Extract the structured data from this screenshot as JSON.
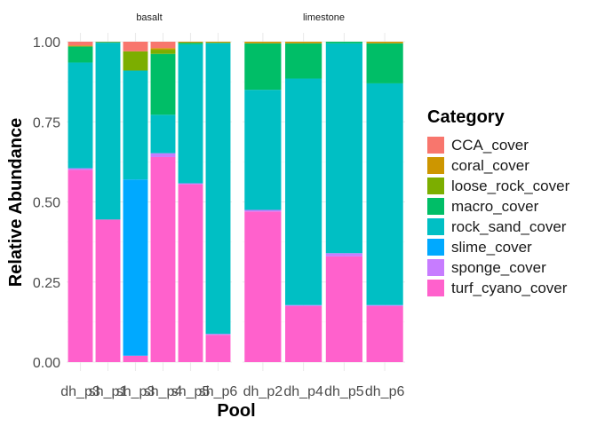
{
  "chart_data": {
    "type": "bar",
    "stacked": true,
    "xlabel": "Pool",
    "ylabel": "Relative Abundance",
    "ylim": [
      0,
      1
    ],
    "yticks": [
      "0.00",
      "0.25",
      "0.50",
      "0.75",
      "1.00"
    ],
    "legend": {
      "title": "Category",
      "position": "right"
    },
    "grid": true,
    "categories_order": [
      "CCA_cover",
      "coral_cover",
      "loose_rock_cover",
      "macro_cover",
      "rock_sand_cover",
      "slime_cover",
      "sponge_cover",
      "turf_cyano_cover"
    ],
    "colors": {
      "CCA_cover": "#F8766D",
      "coral_cover": "#CD9600",
      "loose_rock_cover": "#7CAE00",
      "macro_cover": "#00BE67",
      "rock_sand_cover": "#00BFC4",
      "slime_cover": "#00A9FF",
      "sponge_cover": "#C77CFF",
      "turf_cyano_cover": "#FF61CC"
    },
    "facets": [
      {
        "name": "basalt",
        "bars": [
          {
            "pool": "dh_p3",
            "values": {
              "turf_cyano_cover": 0.6,
              "sponge_cover": 0.005,
              "slime_cover": 0.0,
              "rock_sand_cover": 0.33,
              "macro_cover": 0.05,
              "loose_rock_cover": 0.0,
              "coral_cover": 0.003,
              "CCA_cover": 0.012
            }
          },
          {
            "pool": "sh_p1",
            "values": {
              "turf_cyano_cover": 0.445,
              "sponge_cover": 0.0,
              "slime_cover": 0.0,
              "rock_sand_cover": 0.552,
              "macro_cover": 0.002,
              "loose_rock_cover": 0.0,
              "coral_cover": 0.001,
              "CCA_cover": 0.0
            }
          },
          {
            "pool": "sh_p3",
            "values": {
              "turf_cyano_cover": 0.02,
              "sponge_cover": 0.0,
              "slime_cover": 0.55,
              "rock_sand_cover": 0.34,
              "macro_cover": 0.0,
              "loose_rock_cover": 0.06,
              "coral_cover": 0.0,
              "CCA_cover": 0.03
            }
          },
          {
            "pool": "sh_p4",
            "values": {
              "turf_cyano_cover": 0.64,
              "sponge_cover": 0.012,
              "slime_cover": 0.0,
              "rock_sand_cover": 0.12,
              "macro_cover": 0.19,
              "loose_rock_cover": 0.013,
              "coral_cover": 0.005,
              "CCA_cover": 0.02
            }
          },
          {
            "pool": "sh_p5",
            "values": {
              "turf_cyano_cover": 0.555,
              "sponge_cover": 0.003,
              "slime_cover": 0.0,
              "rock_sand_cover": 0.434,
              "macro_cover": 0.005,
              "loose_rock_cover": 0.0,
              "coral_cover": 0.003,
              "CCA_cover": 0.0
            }
          },
          {
            "pool": "sh_p6",
            "values": {
              "turf_cyano_cover": 0.085,
              "sponge_cover": 0.003,
              "slime_cover": 0.0,
              "rock_sand_cover": 0.907,
              "macro_cover": 0.002,
              "loose_rock_cover": 0.0,
              "coral_cover": 0.003,
              "CCA_cover": 0.0
            }
          }
        ]
      },
      {
        "name": "limestone",
        "bars": [
          {
            "pool": "dh_p2",
            "values": {
              "turf_cyano_cover": 0.47,
              "sponge_cover": 0.005,
              "slime_cover": 0.0,
              "rock_sand_cover": 0.375,
              "macro_cover": 0.145,
              "loose_rock_cover": 0.0,
              "coral_cover": 0.005,
              "CCA_cover": 0.0
            }
          },
          {
            "pool": "dh_p4",
            "values": {
              "turf_cyano_cover": 0.175,
              "sponge_cover": 0.003,
              "slime_cover": 0.0,
              "rock_sand_cover": 0.707,
              "macro_cover": 0.11,
              "loose_rock_cover": 0.0,
              "coral_cover": 0.005,
              "CCA_cover": 0.0
            }
          },
          {
            "pool": "dh_p5",
            "values": {
              "turf_cyano_cover": 0.33,
              "sponge_cover": 0.01,
              "slime_cover": 0.0,
              "rock_sand_cover": 0.655,
              "macro_cover": 0.005,
              "loose_rock_cover": 0.0,
              "coral_cover": 0.0,
              "CCA_cover": 0.0
            }
          },
          {
            "pool": "dh_p6",
            "values": {
              "turf_cyano_cover": 0.175,
              "sponge_cover": 0.003,
              "slime_cover": 0.0,
              "rock_sand_cover": 0.692,
              "macro_cover": 0.125,
              "loose_rock_cover": 0.0,
              "coral_cover": 0.005,
              "CCA_cover": 0.0
            }
          }
        ]
      }
    ]
  }
}
